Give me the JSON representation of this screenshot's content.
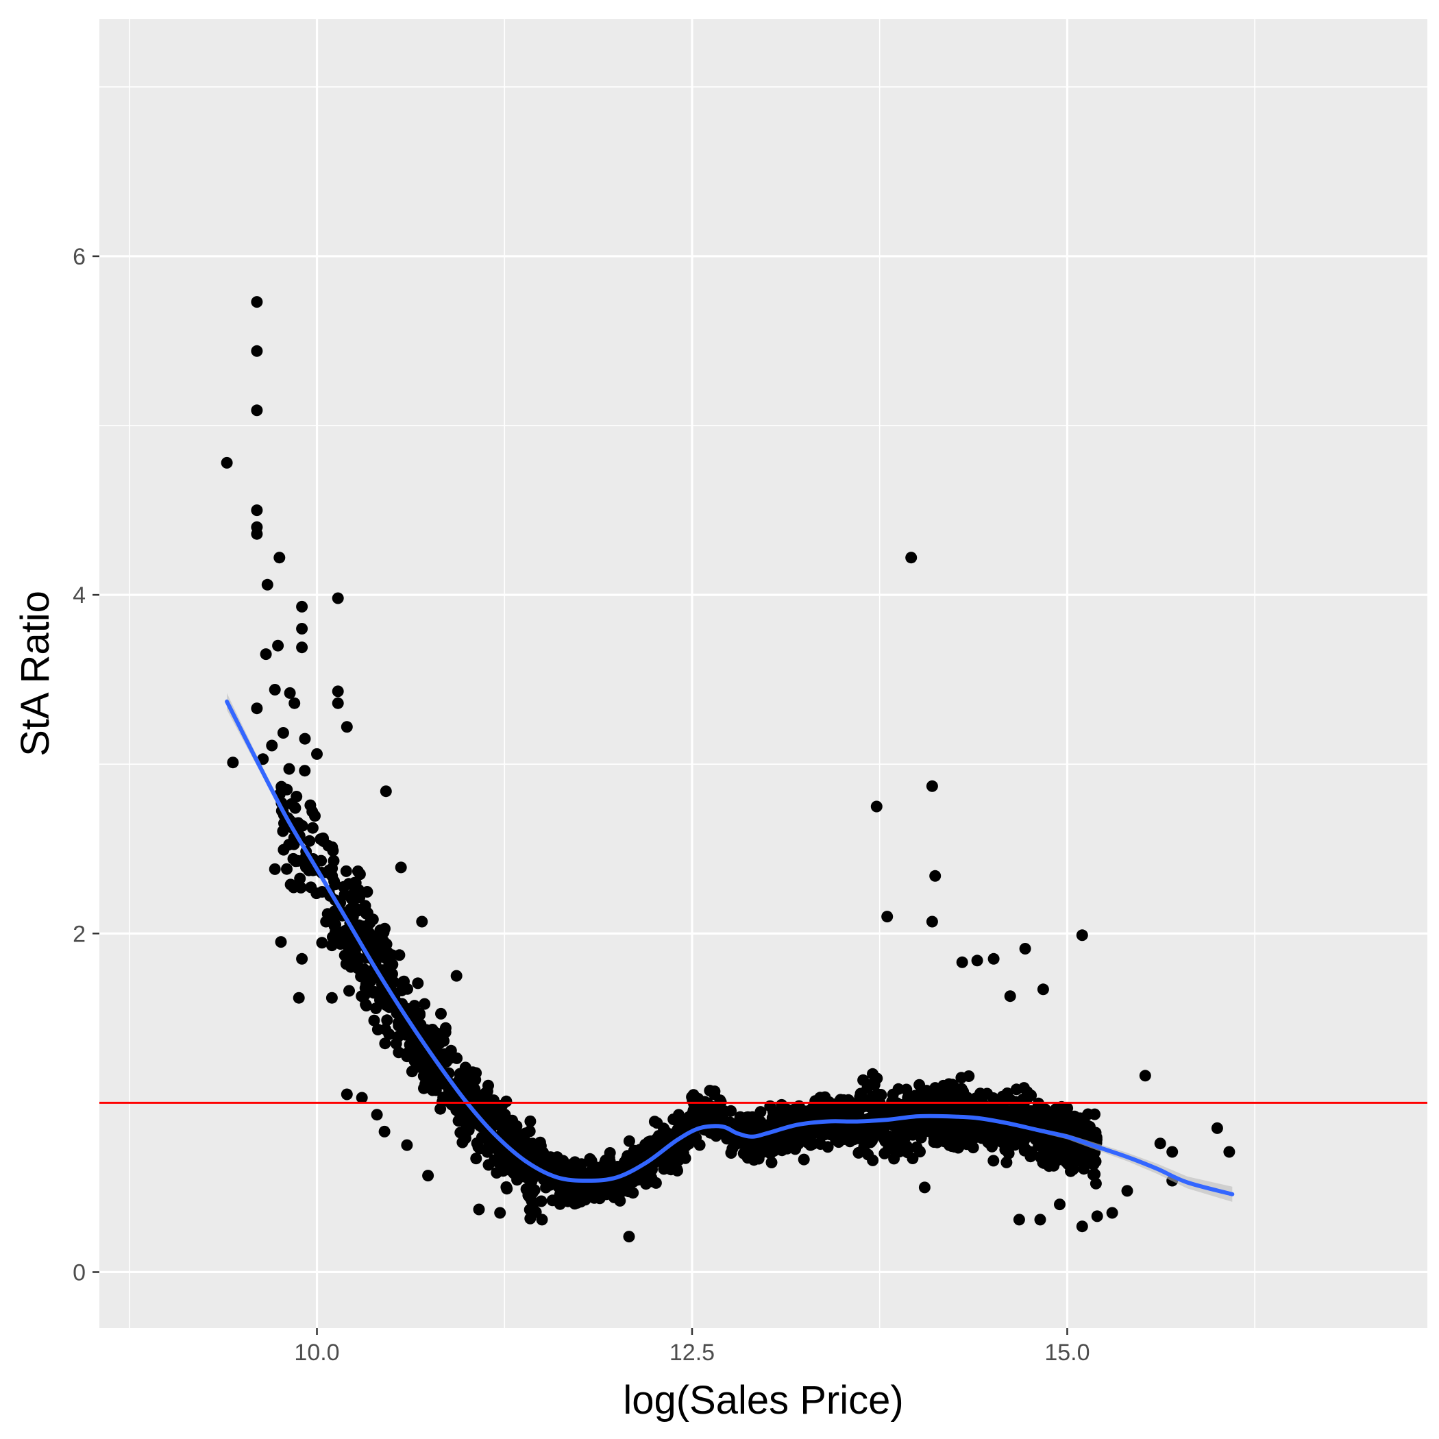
{
  "chart_data": {
    "type": "scatter",
    "title": "",
    "xlabel": "log(Sales Price)",
    "ylabel": "StA Ratio",
    "xlim": [
      8.55,
      17.4
    ],
    "ylim": [
      -0.33,
      7.4
    ],
    "x_ticks": [
      10.0,
      12.5,
      15.0
    ],
    "x_tick_labels": [
      "10.0",
      "12.5",
      "15.0"
    ],
    "y_ticks": [
      0,
      2,
      4,
      6
    ],
    "y_tick_labels": [
      "0",
      "2",
      "4",
      "6"
    ],
    "grid": true,
    "legend": "none",
    "colors": {
      "panel": "#ebebeb",
      "grid_major": "#ffffff",
      "points": "#000000",
      "smooth": "#3366ff",
      "smooth_band": "#bdbdbd",
      "reference_line": "#ff0000"
    },
    "reference_line": {
      "orientation": "horizontal",
      "y": 1.0
    },
    "smooth": {
      "x": [
        9.4,
        9.6,
        9.8,
        10.0,
        10.2,
        10.4,
        10.6,
        10.8,
        11.0,
        11.2,
        11.4,
        11.6,
        11.8,
        12.0,
        12.2,
        12.4,
        12.55,
        12.7,
        12.8,
        12.9,
        13.0,
        13.2,
        13.4,
        13.6,
        13.8,
        14.0,
        14.2,
        14.4,
        14.6,
        14.8,
        15.0,
        15.2,
        15.4,
        15.6,
        15.8,
        16.1
      ],
      "y": [
        3.37,
        3.02,
        2.68,
        2.38,
        2.08,
        1.78,
        1.5,
        1.24,
        1.0,
        0.8,
        0.65,
        0.56,
        0.54,
        0.56,
        0.65,
        0.78,
        0.85,
        0.86,
        0.82,
        0.8,
        0.82,
        0.87,
        0.89,
        0.89,
        0.9,
        0.92,
        0.92,
        0.91,
        0.88,
        0.84,
        0.8,
        0.74,
        0.68,
        0.61,
        0.53,
        0.46
      ],
      "band_halfwidth": [
        0.05,
        0.03,
        0.02,
        0.015,
        0.01,
        0.008,
        0.006,
        0.005,
        0.004,
        0.004,
        0.004,
        0.004,
        0.004,
        0.004,
        0.004,
        0.005,
        0.006,
        0.006,
        0.006,
        0.006,
        0.006,
        0.006,
        0.006,
        0.006,
        0.006,
        0.006,
        0.007,
        0.008,
        0.01,
        0.012,
        0.015,
        0.02,
        0.025,
        0.03,
        0.035,
        0.045
      ]
    },
    "outliers": [
      {
        "x": 9.4,
        "y": 4.78
      },
      {
        "x": 9.44,
        "y": 3.01
      },
      {
        "x": 9.6,
        "y": 5.73
      },
      {
        "x": 9.6,
        "y": 5.44
      },
      {
        "x": 9.6,
        "y": 5.09
      },
      {
        "x": 9.6,
        "y": 4.5
      },
      {
        "x": 9.6,
        "y": 4.4
      },
      {
        "x": 9.6,
        "y": 4.36
      },
      {
        "x": 9.6,
        "y": 3.33
      },
      {
        "x": 9.64,
        "y": 3.03
      },
      {
        "x": 9.67,
        "y": 4.06
      },
      {
        "x": 9.66,
        "y": 3.65
      },
      {
        "x": 9.7,
        "y": 3.11
      },
      {
        "x": 9.72,
        "y": 3.44
      },
      {
        "x": 9.75,
        "y": 4.22
      },
      {
        "x": 9.74,
        "y": 3.7
      },
      {
        "x": 9.76,
        "y": 1.95
      },
      {
        "x": 9.72,
        "y": 2.38
      },
      {
        "x": 9.78,
        "y": 2.7
      },
      {
        "x": 9.8,
        "y": 2.85
      },
      {
        "x": 9.82,
        "y": 3.42
      },
      {
        "x": 9.85,
        "y": 3.36
      },
      {
        "x": 9.88,
        "y": 1.62
      },
      {
        "x": 9.9,
        "y": 3.93
      },
      {
        "x": 9.9,
        "y": 3.8
      },
      {
        "x": 9.9,
        "y": 3.69
      },
      {
        "x": 9.92,
        "y": 3.15
      },
      {
        "x": 9.9,
        "y": 1.85
      },
      {
        "x": 10.0,
        "y": 3.06
      },
      {
        "x": 10.08,
        "y": 2.25
      },
      {
        "x": 10.1,
        "y": 1.62
      },
      {
        "x": 10.14,
        "y": 3.98
      },
      {
        "x": 10.14,
        "y": 3.43
      },
      {
        "x": 10.14,
        "y": 3.36
      },
      {
        "x": 10.2,
        "y": 3.22
      },
      {
        "x": 10.2,
        "y": 1.05
      },
      {
        "x": 10.3,
        "y": 1.03
      },
      {
        "x": 10.4,
        "y": 0.93
      },
      {
        "x": 10.45,
        "y": 0.83
      },
      {
        "x": 10.46,
        "y": 2.84
      },
      {
        "x": 10.56,
        "y": 2.39
      },
      {
        "x": 10.6,
        "y": 0.75
      },
      {
        "x": 10.7,
        "y": 2.07
      },
      {
        "x": 10.74,
        "y": 0.57
      },
      {
        "x": 10.93,
        "y": 1.75
      },
      {
        "x": 11.08,
        "y": 0.37
      },
      {
        "x": 11.22,
        "y": 0.35
      },
      {
        "x": 11.5,
        "y": 0.31
      },
      {
        "x": 12.08,
        "y": 0.21
      },
      {
        "x": 13.73,
        "y": 2.75
      },
      {
        "x": 13.8,
        "y": 2.1
      },
      {
        "x": 13.96,
        "y": 4.22
      },
      {
        "x": 14.1,
        "y": 2.87
      },
      {
        "x": 14.12,
        "y": 2.34
      },
      {
        "x": 14.1,
        "y": 2.07
      },
      {
        "x": 14.3,
        "y": 1.83
      },
      {
        "x": 14.4,
        "y": 1.84
      },
      {
        "x": 14.51,
        "y": 1.85
      },
      {
        "x": 14.62,
        "y": 1.63
      },
      {
        "x": 14.72,
        "y": 1.91
      },
      {
        "x": 14.84,
        "y": 1.67
      },
      {
        "x": 15.1,
        "y": 1.99
      },
      {
        "x": 15.52,
        "y": 1.16
      },
      {
        "x": 15.62,
        "y": 0.76
      },
      {
        "x": 15.7,
        "y": 0.71
      },
      {
        "x": 15.7,
        "y": 0.54
      },
      {
        "x": 16.0,
        "y": 0.85
      },
      {
        "x": 16.08,
        "y": 0.71
      },
      {
        "x": 15.4,
        "y": 0.48
      },
      {
        "x": 15.1,
        "y": 0.27
      },
      {
        "x": 15.2,
        "y": 0.33
      },
      {
        "x": 15.3,
        "y": 0.35
      },
      {
        "x": 14.82,
        "y": 0.31
      },
      {
        "x": 14.68,
        "y": 0.31
      },
      {
        "x": 14.95,
        "y": 0.4
      },
      {
        "x": 14.05,
        "y": 0.5
      }
    ]
  }
}
